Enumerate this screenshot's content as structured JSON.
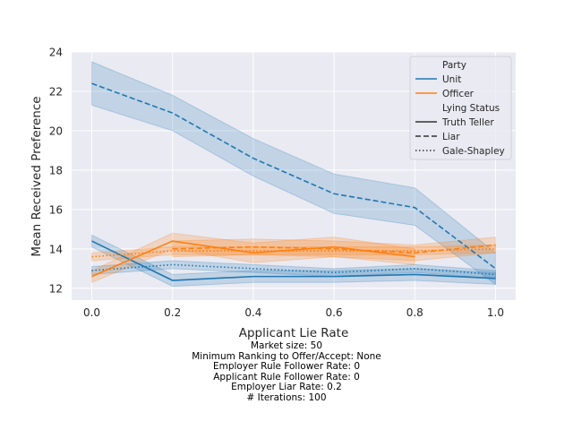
{
  "chart_data": {
    "type": "line",
    "xlabel": "Applicant Lie Rate",
    "ylabel": "Mean Received Preference",
    "xlim": [
      -0.05,
      1.05
    ],
    "ylim": [
      11.4,
      24.0
    ],
    "xticks": [
      "0.0",
      "0.2",
      "0.4",
      "0.6",
      "0.8",
      "1.0"
    ],
    "yticks": [
      "12",
      "14",
      "16",
      "18",
      "20",
      "22",
      "24"
    ],
    "grid": true,
    "legend_placement": "top-right",
    "legend": {
      "hue_title": "Party",
      "hue_entries": [
        "Unit",
        "Officer"
      ],
      "style_title": "Lying Status",
      "style_entries": [
        "Truth Teller",
        "Liar",
        "Gale-Shapley"
      ]
    },
    "colors": {
      "Unit": "#1f77b4",
      "Officer": "#ff7f0e",
      "background": "#eaeaf2"
    },
    "x": [
      0.0,
      0.2,
      0.4,
      0.6,
      0.8,
      1.0
    ],
    "series": [
      {
        "party": "Unit",
        "status": "Truth Teller",
        "values": [
          14.4,
          12.4,
          12.6,
          12.6,
          12.7,
          12.5
        ],
        "lower": [
          14.1,
          12.1,
          12.3,
          12.3,
          12.4,
          12.2
        ],
        "upper": [
          14.7,
          12.7,
          12.9,
          12.9,
          13.0,
          12.8
        ]
      },
      {
        "party": "Unit",
        "status": "Liar",
        "values": [
          22.4,
          20.9,
          18.6,
          16.8,
          16.1,
          13.0
        ],
        "lower": [
          21.3,
          20.0,
          17.7,
          15.8,
          15.2,
          12.2
        ],
        "upper": [
          23.5,
          21.8,
          19.6,
          17.8,
          17.1,
          13.8
        ]
      },
      {
        "party": "Unit",
        "status": "Gale-Shapley",
        "values": [
          12.9,
          13.2,
          13.0,
          12.8,
          13.0,
          12.7
        ],
        "lower": [
          12.7,
          13.0,
          12.8,
          12.6,
          12.8,
          12.5
        ],
        "upper": [
          13.1,
          13.4,
          13.2,
          13.0,
          13.2,
          12.9
        ]
      },
      {
        "party": "Officer",
        "status": "Truth Teller",
        "values": [
          12.6,
          14.4,
          13.8,
          14.1,
          13.6,
          null
        ],
        "lower": [
          12.3,
          14.0,
          13.3,
          13.6,
          13.2,
          null
        ],
        "upper": [
          12.9,
          14.8,
          14.3,
          14.6,
          14.0,
          null
        ]
      },
      {
        "party": "Officer",
        "status": "Liar",
        "values": [
          null,
          14.0,
          14.1,
          14.0,
          13.8,
          14.2
        ],
        "lower": [
          null,
          13.6,
          13.7,
          13.6,
          13.4,
          13.8
        ],
        "upper": [
          null,
          14.4,
          14.5,
          14.4,
          14.2,
          14.6
        ]
      },
      {
        "party": "Officer",
        "status": "Gale-Shapley",
        "values": [
          13.6,
          13.9,
          13.9,
          13.9,
          13.9,
          14.0
        ],
        "lower": [
          13.4,
          13.7,
          13.7,
          13.7,
          13.7,
          13.8
        ],
        "upper": [
          13.8,
          14.1,
          14.1,
          14.1,
          14.1,
          14.2
        ]
      }
    ]
  },
  "footer": {
    "lines": [
      "Market size: 50",
      "Minimum Ranking to Offer/Accept: None",
      "Employer Rule Follower Rate: 0",
      "Applicant Rule Follower Rate: 0",
      "Employer Liar Rate: 0.2",
      "# Iterations: 100"
    ]
  }
}
